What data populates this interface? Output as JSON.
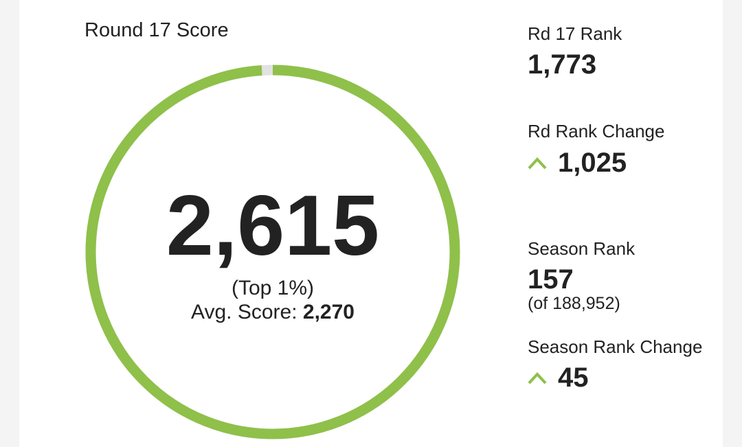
{
  "score_card": {
    "title": "Round 17 Score",
    "score": "2,615",
    "percentile": "(Top 1%)",
    "avg_label": "Avg. Score:",
    "avg_value": "2,270"
  },
  "stats": [
    {
      "label": "Rd 17 Rank",
      "value": "1,773"
    },
    {
      "label": "Rd Rank Change",
      "value": "1,025"
    },
    {
      "label": "Season Rank",
      "value": "157",
      "note": "(of 188,952)"
    },
    {
      "label": "Season Rank Change",
      "value": "45"
    }
  ]
}
